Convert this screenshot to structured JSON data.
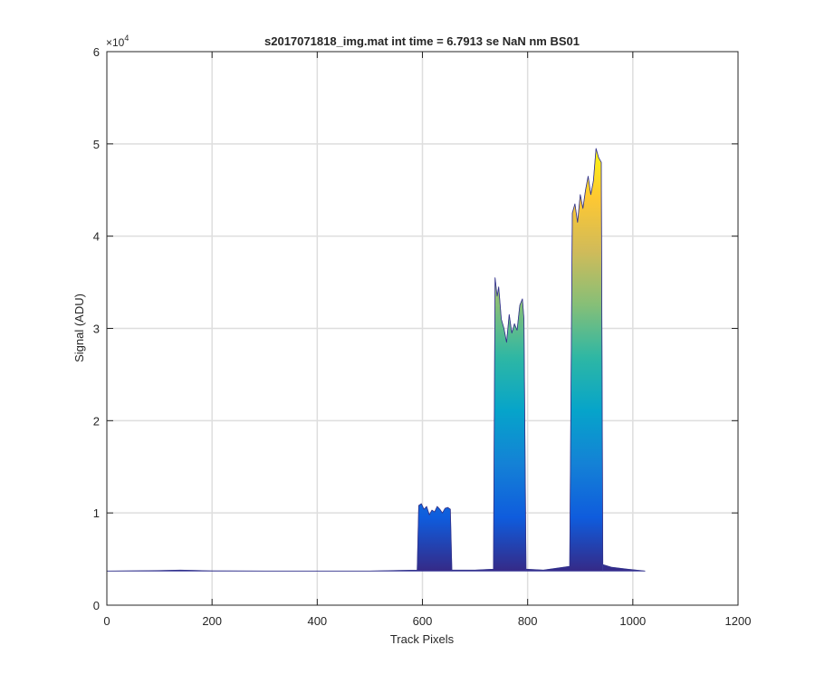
{
  "chart_data": {
    "type": "area",
    "title": "s2017071818_img.mat int time = 6.7913 se  NaN nm BS01",
    "xlabel": "Track Pixels",
    "ylabel": "Signal (ADU)",
    "y_exponent_label": "×10",
    "y_exponent_power": "4",
    "xlim": [
      0,
      1200
    ],
    "ylim": [
      0,
      60000
    ],
    "xticks": [
      0,
      200,
      400,
      600,
      800,
      1000,
      1200
    ],
    "yticks": [
      0,
      10000,
      20000,
      30000,
      40000,
      50000,
      60000
    ],
    "xtick_labels": [
      "0",
      "200",
      "400",
      "600",
      "800",
      "1000",
      "1200"
    ],
    "ytick_labels": [
      "0",
      "1",
      "2",
      "3",
      "4",
      "5",
      "6"
    ],
    "grid": true,
    "colormap": [
      "#352a87",
      "#0f5cdd",
      "#1481d6",
      "#06a4ca",
      "#2eb7a4",
      "#87bf77",
      "#d1bb59",
      "#fec832",
      "#f9fb0e"
    ],
    "baseline": 3700,
    "series": [
      {
        "x": [
          0,
          100,
          140,
          200,
          300,
          400,
          500,
          590,
          593,
          598,
          603,
          608,
          613,
          618,
          623,
          628,
          633,
          638,
          643,
          648,
          653,
          656
        ],
        "y": [
          3700,
          3750,
          3800,
          3720,
          3700,
          3700,
          3700,
          3800,
          10800,
          11000,
          10400,
          10700,
          9800,
          10300,
          10100,
          10700,
          10400,
          10000,
          10500,
          10600,
          10400,
          3800
        ]
      },
      {
        "x": [
          656,
          700,
          735,
          738,
          742,
          745,
          750,
          755,
          760,
          765,
          770,
          775,
          780,
          785,
          790,
          793,
          797
        ],
        "y": [
          3800,
          3800,
          3900,
          35500,
          33500,
          34500,
          31000,
          30000,
          28500,
          31500,
          29500,
          30500,
          29800,
          32500,
          33200,
          31000,
          3900
        ]
      },
      {
        "x": [
          797,
          830,
          880,
          885,
          890,
          895,
          900,
          905,
          910,
          915,
          920,
          925,
          930,
          935,
          940,
          943
        ],
        "y": [
          3900,
          3800,
          4200,
          42500,
          43500,
          41500,
          44500,
          43000,
          45000,
          46500,
          44500,
          46000,
          49500,
          48500,
          48000,
          4400
        ]
      },
      {
        "x": [
          943,
          960,
          990,
          1023
        ],
        "y": [
          4400,
          4100,
          3900,
          3700
        ]
      }
    ]
  }
}
